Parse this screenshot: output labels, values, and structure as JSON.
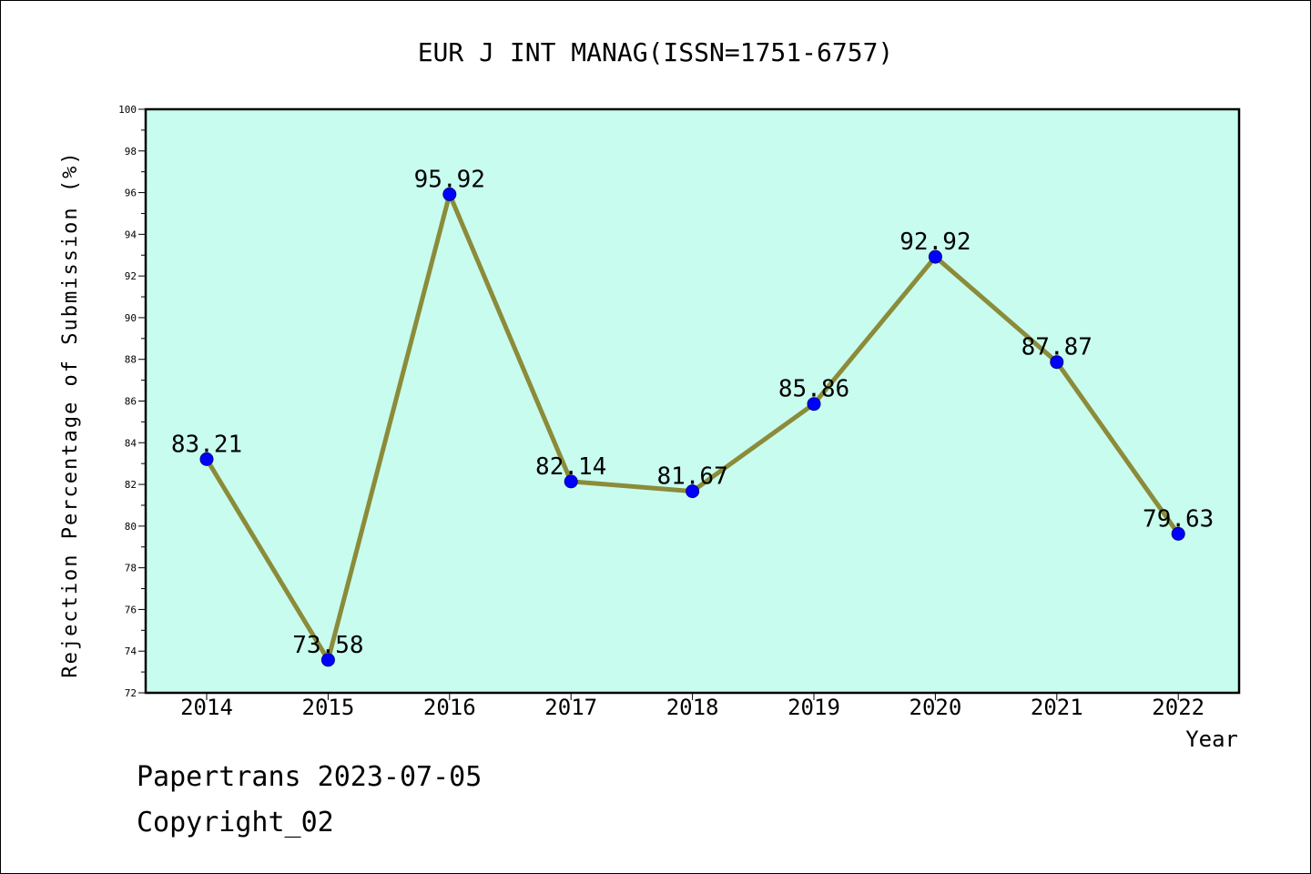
{
  "chart_data": {
    "type": "line",
    "title": "EUR J INT MANAG(ISSN=1751-6757)",
    "xlabel": "Year",
    "ylabel": "Rejection Percentage of Submission (%)",
    "categories": [
      "2014",
      "2015",
      "2016",
      "2017",
      "2018",
      "2019",
      "2020",
      "2021",
      "2022"
    ],
    "series": [
      {
        "values": [
          83.21,
          73.58,
          95.92,
          82.14,
          81.67,
          85.86,
          92.92,
          87.87,
          79.63
        ],
        "labels": [
          "83.21",
          "73.58",
          "95.92",
          "82.14",
          "81.67",
          "85.86",
          "92.92",
          "87.87",
          "79.63"
        ]
      }
    ],
    "ylim": [
      72,
      100
    ],
    "yticks": [
      "72",
      "74",
      "76",
      "78",
      "80",
      "82",
      "84",
      "86",
      "88",
      "90",
      "92",
      "94",
      "96",
      "98",
      "100"
    ],
    "grid": false,
    "colors": {
      "plot_background": "#c8fcee",
      "line": "#8b8b3a",
      "marker": "#0000ff"
    }
  },
  "footer": {
    "line1": "Papertrans 2023-07-05",
    "line2": "Copyright_02"
  }
}
